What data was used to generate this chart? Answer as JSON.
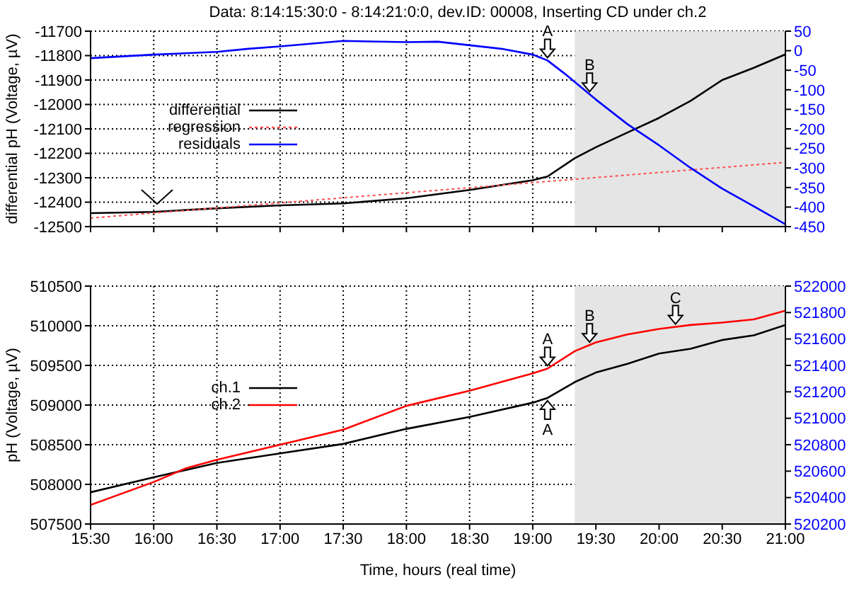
{
  "chart_data": [
    {
      "type": "line",
      "title": "Data: 8:14:15:30:0 - 8:14:21:0:0, dev.ID: 00008, Inserting CD under ch.2",
      "ylabel": "differential pH (Voltage, µV)",
      "series": [
        {
          "name": "differential",
          "color": "#000000",
          "x": [
            15.5,
            16,
            16.5,
            17,
            17.5,
            18,
            18.5,
            19,
            19.117,
            19.333,
            19.5,
            19.75,
            20,
            20.25,
            20.5,
            20.75,
            21
          ],
          "values": [
            -12445,
            -12440,
            -12425,
            -12413,
            -12405,
            -12384,
            -12350,
            -12310,
            -12295,
            -12220,
            -12175,
            -12115,
            -12055,
            -11985,
            -11900,
            -11850,
            -11795
          ]
        },
        {
          "name": "regression",
          "color": "#ff5050",
          "line_style": "dotted",
          "x": [
            15.5,
            21
          ],
          "values": [
            -12465,
            -12237
          ]
        },
        {
          "name": "residuals",
          "color": "#0000ff",
          "axis": "y2",
          "x": [
            15.5,
            16,
            16.5,
            16.75,
            17,
            17.5,
            18,
            18.25,
            18.5,
            18.75,
            19,
            19.117,
            19.25,
            19.5,
            19.75,
            20,
            20.25,
            20.5,
            20.75,
            21
          ],
          "values": [
            -19,
            -10,
            -3,
            5,
            11,
            25,
            22,
            23,
            14,
            5,
            -10,
            -25,
            -58,
            -125,
            -188,
            -242,
            -300,
            -353,
            -398,
            -444
          ]
        }
      ],
      "xlim": [
        15.5,
        21
      ],
      "xticks": [
        15.5,
        16,
        16.5,
        17,
        17.5,
        18,
        18.5,
        19,
        19.5,
        20,
        20.5,
        21
      ],
      "ylim": [
        -12500,
        -11700
      ],
      "yticks": [
        -12500,
        -12400,
        -12300,
        -12200,
        -12100,
        -12000,
        -11900,
        -11800,
        -11700
      ],
      "y2lim": [
        -450,
        50
      ],
      "y2ticks": [
        -450,
        -400,
        -350,
        -300,
        -250,
        -200,
        -150,
        -100,
        -50,
        0,
        50
      ],
      "bands": [
        {
          "axis": "x",
          "from": 19.333,
          "to": 21,
          "color": "#e5e5e5"
        }
      ],
      "annotations": [
        {
          "text": "A",
          "x": 19.117,
          "y": -11820
        },
        {
          "text": "B",
          "x": 19.45,
          "y": -11959
        }
      ],
      "grid": true,
      "legend": "left",
      "tick_labels": "y"
    },
    {
      "type": "line",
      "xlabel": "Time, hours (real time)",
      "ylabel": "pH (Voltage, µV)",
      "series": [
        {
          "name": "ch.1",
          "color": "#000000",
          "x": [
            15.5,
            16,
            16.5,
            17,
            17.5,
            18,
            18.5,
            19,
            19.117,
            19.333,
            19.5,
            19.75,
            20,
            20.25,
            20.5,
            20.75,
            21
          ],
          "values": [
            507900,
            508090,
            508270,
            508390,
            508510,
            508700,
            508850,
            509030,
            509090,
            509290,
            509410,
            509520,
            509650,
            509710,
            509820,
            509880,
            510010
          ]
        },
        {
          "name": "ch.2",
          "color": "#ff0000",
          "x": [
            15.5,
            16,
            16.25,
            16.5,
            17,
            17.5,
            18,
            18.5,
            19,
            19.117,
            19.333,
            19.5,
            19.75,
            20,
            20.25,
            20.5,
            20.75,
            21
          ],
          "values": [
            507740,
            508030,
            508200,
            508310,
            508500,
            508690,
            508990,
            509180,
            509400,
            509460,
            509680,
            509790,
            509890,
            509960,
            510010,
            510040,
            510080,
            510190
          ]
        }
      ],
      "xlim": [
        15.5,
        21
      ],
      "xticks": [
        {
          "value": 15.5,
          "label": "15:30"
        },
        {
          "value": 16,
          "label": "16:00"
        },
        {
          "value": 16.5,
          "label": "16:30"
        },
        {
          "value": 17,
          "label": "17:00"
        },
        {
          "value": 17.5,
          "label": "17:30"
        },
        {
          "value": 18,
          "label": "18:00"
        },
        {
          "value": 18.5,
          "label": "18:30"
        },
        {
          "value": 19,
          "label": "19:00"
        },
        {
          "value": 19.5,
          "label": "19:30"
        },
        {
          "value": 20,
          "label": "20:00"
        },
        {
          "value": 20.5,
          "label": "20:30"
        },
        {
          "value": 21,
          "label": "21:00"
        }
      ],
      "ylim": [
        507500,
        510500
      ],
      "yticks": [
        507500,
        508000,
        508500,
        509000,
        509500,
        510000,
        510500
      ],
      "y2lim": [
        520200,
        522000
      ],
      "y2ticks": [
        520200,
        520400,
        520600,
        520800,
        521000,
        521200,
        521400,
        521600,
        521800,
        522000
      ],
      "bands": [
        {
          "axis": "x",
          "from": 19.333,
          "to": 21,
          "color": "#e5e5e5"
        }
      ],
      "annotations": [
        {
          "text": "A",
          "x": 19.117,
          "y": 509460
        },
        {
          "text": "A",
          "x": 19.117,
          "y": 509090
        },
        {
          "text": "B",
          "x": 19.45,
          "y": 509757
        },
        {
          "text": "C",
          "x": 20.13,
          "y": 509986
        }
      ],
      "grid": true,
      "legend": "left"
    }
  ]
}
